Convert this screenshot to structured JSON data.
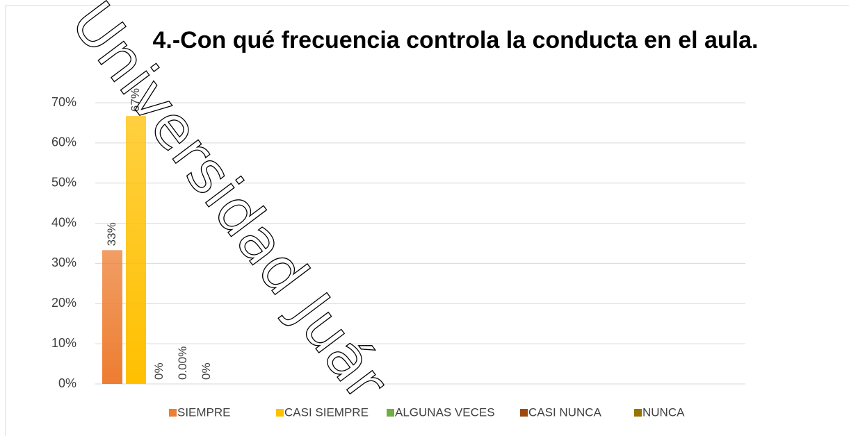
{
  "chart_data": {
    "type": "bar",
    "title": "4.-Con qué frecuencia controla la conducta en el aula.",
    "watermark": "Universidad Juár",
    "categories": [
      null
    ],
    "series": [
      {
        "name": "SIEMPRE",
        "color": "#ed7d31",
        "values": [
          33.3
        ],
        "value_labels": [
          "33%"
        ]
      },
      {
        "name": "CASI SIEMPRE",
        "color": "#ffc000",
        "values": [
          66.7
        ],
        "value_labels": [
          "67%"
        ]
      },
      {
        "name": "ALGUNAS VECES",
        "color": "#70ad47",
        "values": [
          0
        ],
        "value_labels": [
          "0%"
        ]
      },
      {
        "name": "CASI NUNCA",
        "color": "#9e480e",
        "values": [
          0
        ],
        "value_labels": [
          "0.00%"
        ]
      },
      {
        "name": "NUNCA",
        "color": "#997300",
        "values": [
          0
        ],
        "value_labels": [
          "0%"
        ]
      }
    ],
    "ylim": [
      0,
      70
    ],
    "yticks": [
      {
        "value": 0,
        "label": "0%"
      },
      {
        "value": 10,
        "label": "10%"
      },
      {
        "value": 20,
        "label": "20%"
      },
      {
        "value": 30,
        "label": "30%"
      },
      {
        "value": 40,
        "label": "40%"
      },
      {
        "value": 50,
        "label": "50%"
      },
      {
        "value": 60,
        "label": "60%"
      },
      {
        "value": 70,
        "label": "70%"
      }
    ],
    "grid": true,
    "legend": "bottom"
  }
}
